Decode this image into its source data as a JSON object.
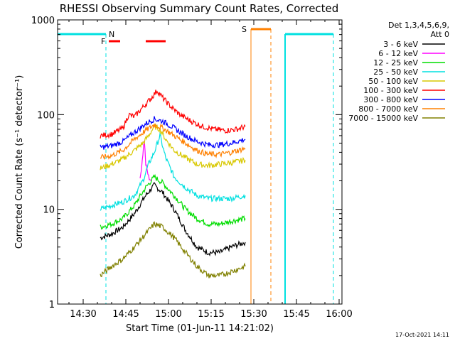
{
  "chart_data": {
    "type": "line",
    "title": "RHESSI Observing Summary Count Rates, Corrected",
    "xlabel": "Start Time (01-Jun-11 14:21:02)",
    "ylabel": "Corrected Count Rate (s⁻¹ detector⁻¹)",
    "y_scale": "log",
    "ylim": [
      1,
      1000
    ],
    "xlim": [
      "14:21",
      "16:01"
    ],
    "x_ticks": [
      "14:30",
      "14:45",
      "15:00",
      "15:15",
      "15:30",
      "15:45",
      "16:00"
    ],
    "y_ticks": [
      "1",
      "10",
      "100",
      "1000"
    ],
    "legend_header": [
      "Det 1,3,4,5,6,9,",
      "Att 0"
    ],
    "legend_placement": "right",
    "grid": false,
    "footer_date": "17-Oct-2021 14:11",
    "flags": {
      "N_label": "N",
      "S_label": "S",
      "F_label": "F"
    },
    "series": [
      {
        "name": "3 - 6 keV",
        "color": "#000000",
        "x": [
          "14:36",
          "14:40",
          "14:44",
          "14:48",
          "14:52",
          "14:55",
          "14:58",
          "15:02",
          "15:06",
          "15:10",
          "15:14",
          "15:18",
          "15:22",
          "15:27"
        ],
        "y": [
          5,
          5.5,
          6.5,
          9,
          14,
          18,
          15,
          10,
          6,
          4,
          3.5,
          3.5,
          4,
          4.5
        ]
      },
      {
        "name": "6 - 12 keV",
        "color": "#ff00ff",
        "x": [
          "14:50",
          "14:51.5",
          "14:52",
          "14:53",
          "14:54"
        ],
        "y": [
          20,
          55,
          30,
          22,
          20
        ]
      },
      {
        "name": "12 - 25 keV",
        "color": "#00dd00",
        "x": [
          "14:36",
          "14:40",
          "14:44",
          "14:48",
          "14:52",
          "14:55",
          "14:58",
          "15:02",
          "15:06",
          "15:10",
          "15:14",
          "15:18",
          "15:22",
          "15:27"
        ],
        "y": [
          6.5,
          7,
          8,
          11,
          17,
          22,
          19,
          14,
          10,
          8,
          7,
          7,
          7.5,
          8
        ]
      },
      {
        "name": "25 - 50 keV",
        "color": "#00e0e0",
        "x": [
          "14:36",
          "14:40",
          "14:44",
          "14:48",
          "14:51",
          "14:53",
          "14:55",
          "14:57",
          "14:59",
          "15:02",
          "15:06",
          "15:10",
          "15:14",
          "15:18",
          "15:22",
          "15:27"
        ],
        "y": [
          10,
          11,
          12,
          14,
          20,
          30,
          40,
          60,
          35,
          22,
          17,
          14,
          13,
          13,
          13,
          14
        ]
      },
      {
        "name": "50 - 100 keV",
        "color": "#d8c800",
        "x": [
          "14:36",
          "14:40",
          "14:44",
          "14:48",
          "14:51",
          "14:53",
          "14:55",
          "14:57",
          "14:59",
          "15:02",
          "15:06",
          "15:10",
          "15:14",
          "15:18",
          "15:22",
          "15:27"
        ],
        "y": [
          27,
          30,
          34,
          42,
          50,
          60,
          75,
          70,
          55,
          42,
          35,
          30,
          29,
          30,
          31,
          33
        ]
      },
      {
        "name": "100 - 300 keV",
        "color": "#ff0000",
        "x": [
          "14:36",
          "14:40",
          "14:44",
          "14:46",
          "14:48",
          "14:51",
          "14:54",
          "14:56",
          "14:58",
          "15:01",
          "15:04",
          "15:08",
          "15:12",
          "15:16",
          "15:20",
          "15:24",
          "15:27"
        ],
        "y": [
          60,
          62,
          72,
          100,
          95,
          120,
          150,
          180,
          150,
          120,
          100,
          85,
          75,
          70,
          68,
          70,
          75
        ]
      },
      {
        "name": "300 - 800 keV",
        "color": "#0000ff",
        "x": [
          "14:36",
          "14:40",
          "14:44",
          "14:48",
          "14:52",
          "14:55",
          "14:58",
          "15:02",
          "15:06",
          "15:10",
          "15:14",
          "15:18",
          "15:22",
          "15:27"
        ],
        "y": [
          45,
          47,
          52,
          65,
          80,
          90,
          85,
          72,
          60,
          52,
          48,
          48,
          50,
          55
        ]
      },
      {
        "name": "800 - 7000 keV",
        "color": "#ff8000",
        "x": [
          "14:36",
          "14:40",
          "14:44",
          "14:48",
          "14:52",
          "14:55",
          "14:58",
          "15:02",
          "15:06",
          "15:10",
          "15:14",
          "15:18",
          "15:22",
          "15:27"
        ],
        "y": [
          35,
          37,
          42,
          55,
          68,
          78,
          72,
          60,
          50,
          42,
          38,
          38,
          40,
          44
        ]
      },
      {
        "name": "7000 - 15000 keV",
        "color": "#808000",
        "x": [
          "14:36",
          "14:40",
          "14:44",
          "14:48",
          "14:52",
          "14:55",
          "14:58",
          "15:02",
          "15:06",
          "15:10",
          "15:14",
          "15:18",
          "15:22",
          "15:27"
        ],
        "y": [
          2,
          2.5,
          3,
          4,
          5.5,
          7,
          6.5,
          5,
          3.5,
          2.5,
          2,
          2,
          2.2,
          2.5
        ]
      }
    ]
  }
}
